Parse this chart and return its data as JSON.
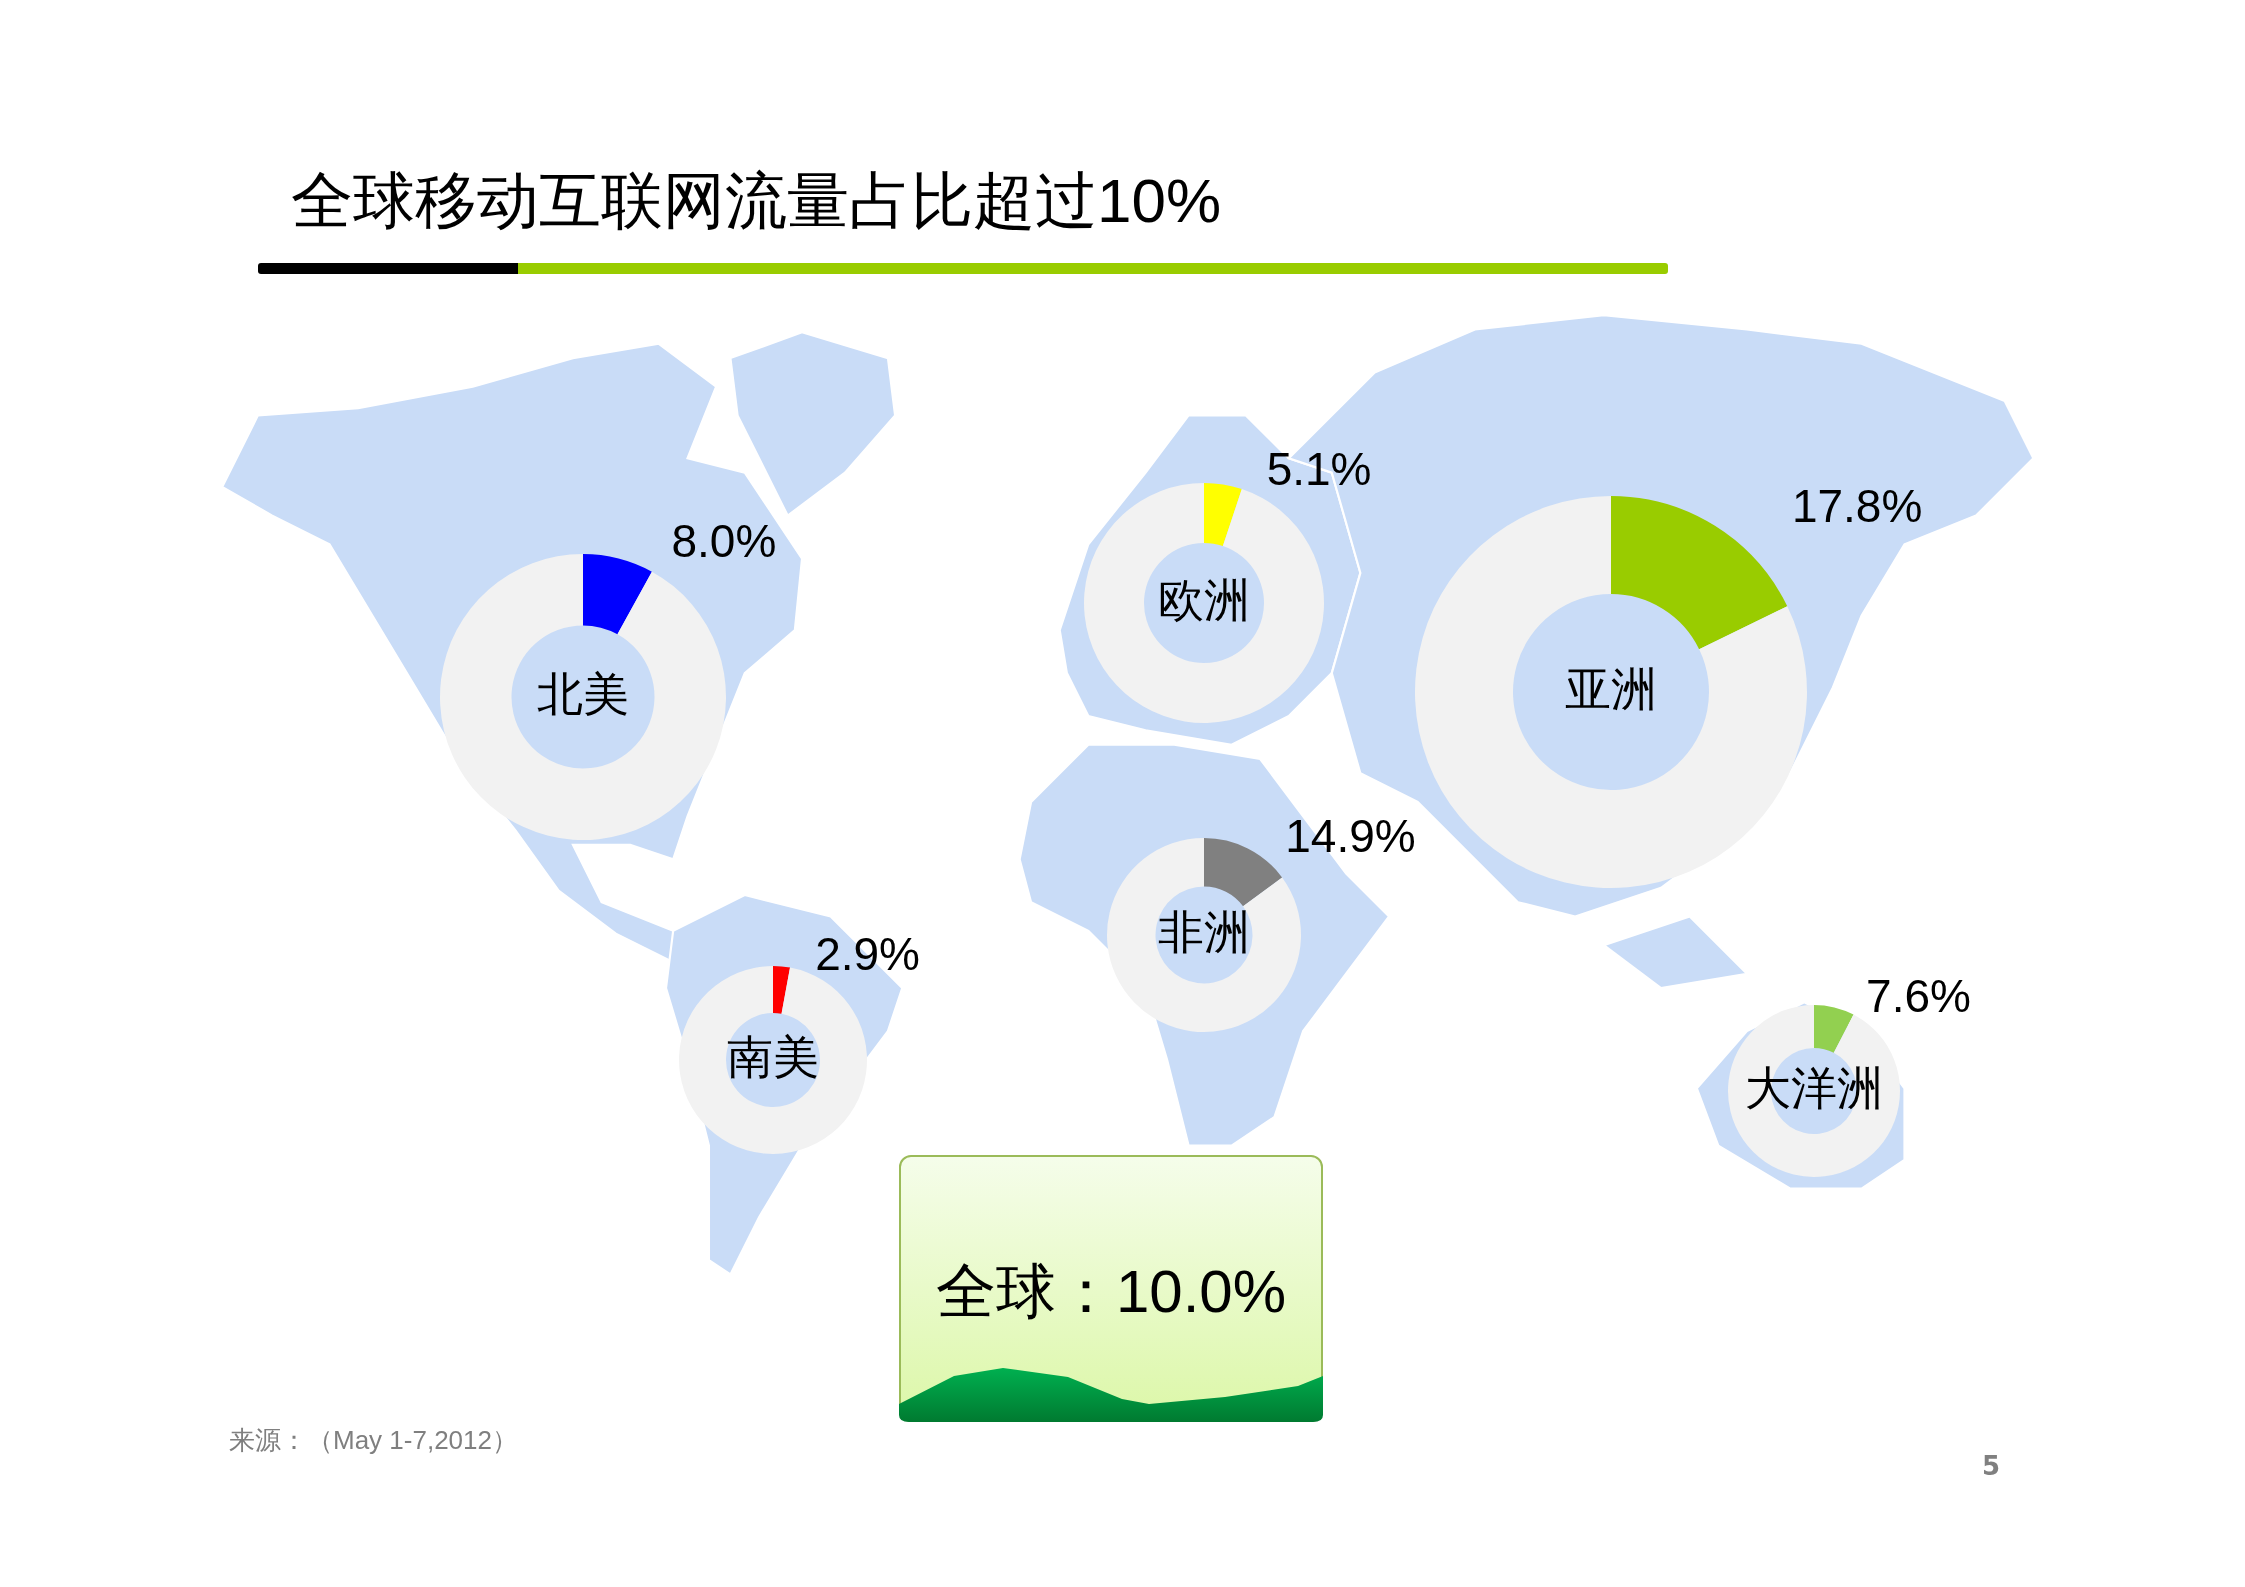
{
  "chart_data": [
    {
      "type": "other",
      "title": "全球移动互联网流量占比超过10%",
      "annotations": [
        "全球：10.0%",
        "来源：（May 1-7,2012）",
        "5"
      ]
    },
    {
      "type": "donut",
      "title": "北美",
      "categories": [
        null,
        null
      ],
      "values": [
        8.0,
        92.0
      ],
      "colors": [
        "#0000ff",
        "#f2f2f2"
      ],
      "value_labels": [
        "8.0%",
        null
      ]
    },
    {
      "type": "donut",
      "title": "欧洲",
      "categories": [
        null,
        null
      ],
      "values": [
        5.1,
        94.9
      ],
      "colors": [
        "#ffff00",
        "#f2f2f2"
      ],
      "value_labels": [
        "5.1%",
        null
      ]
    },
    {
      "type": "donut",
      "title": "亚洲",
      "categories": [
        null,
        null
      ],
      "values": [
        17.8,
        82.2
      ],
      "colors": [
        "#99cc00",
        "#f2f2f2"
      ],
      "value_labels": [
        "17.8%",
        null
      ]
    },
    {
      "type": "donut",
      "title": "非洲",
      "categories": [
        null,
        null
      ],
      "values": [
        14.9,
        85.1
      ],
      "colors": [
        "#808080",
        "#f2f2f2"
      ],
      "value_labels": [
        "14.9%",
        null
      ]
    },
    {
      "type": "donut",
      "title": "南美",
      "categories": [
        null,
        null
      ],
      "values": [
        2.9,
        97.1
      ],
      "colors": [
        "#ff0000",
        "#f2f2f2"
      ],
      "value_labels": [
        "2.9%",
        null
      ]
    },
    {
      "type": "donut",
      "title": "大洋洲",
      "categories": [
        null,
        null
      ],
      "values": [
        7.6,
        92.4
      ],
      "colors": [
        "#92d050",
        "#f2f2f2"
      ],
      "value_labels": [
        "7.6%",
        null
      ]
    }
  ]
}
